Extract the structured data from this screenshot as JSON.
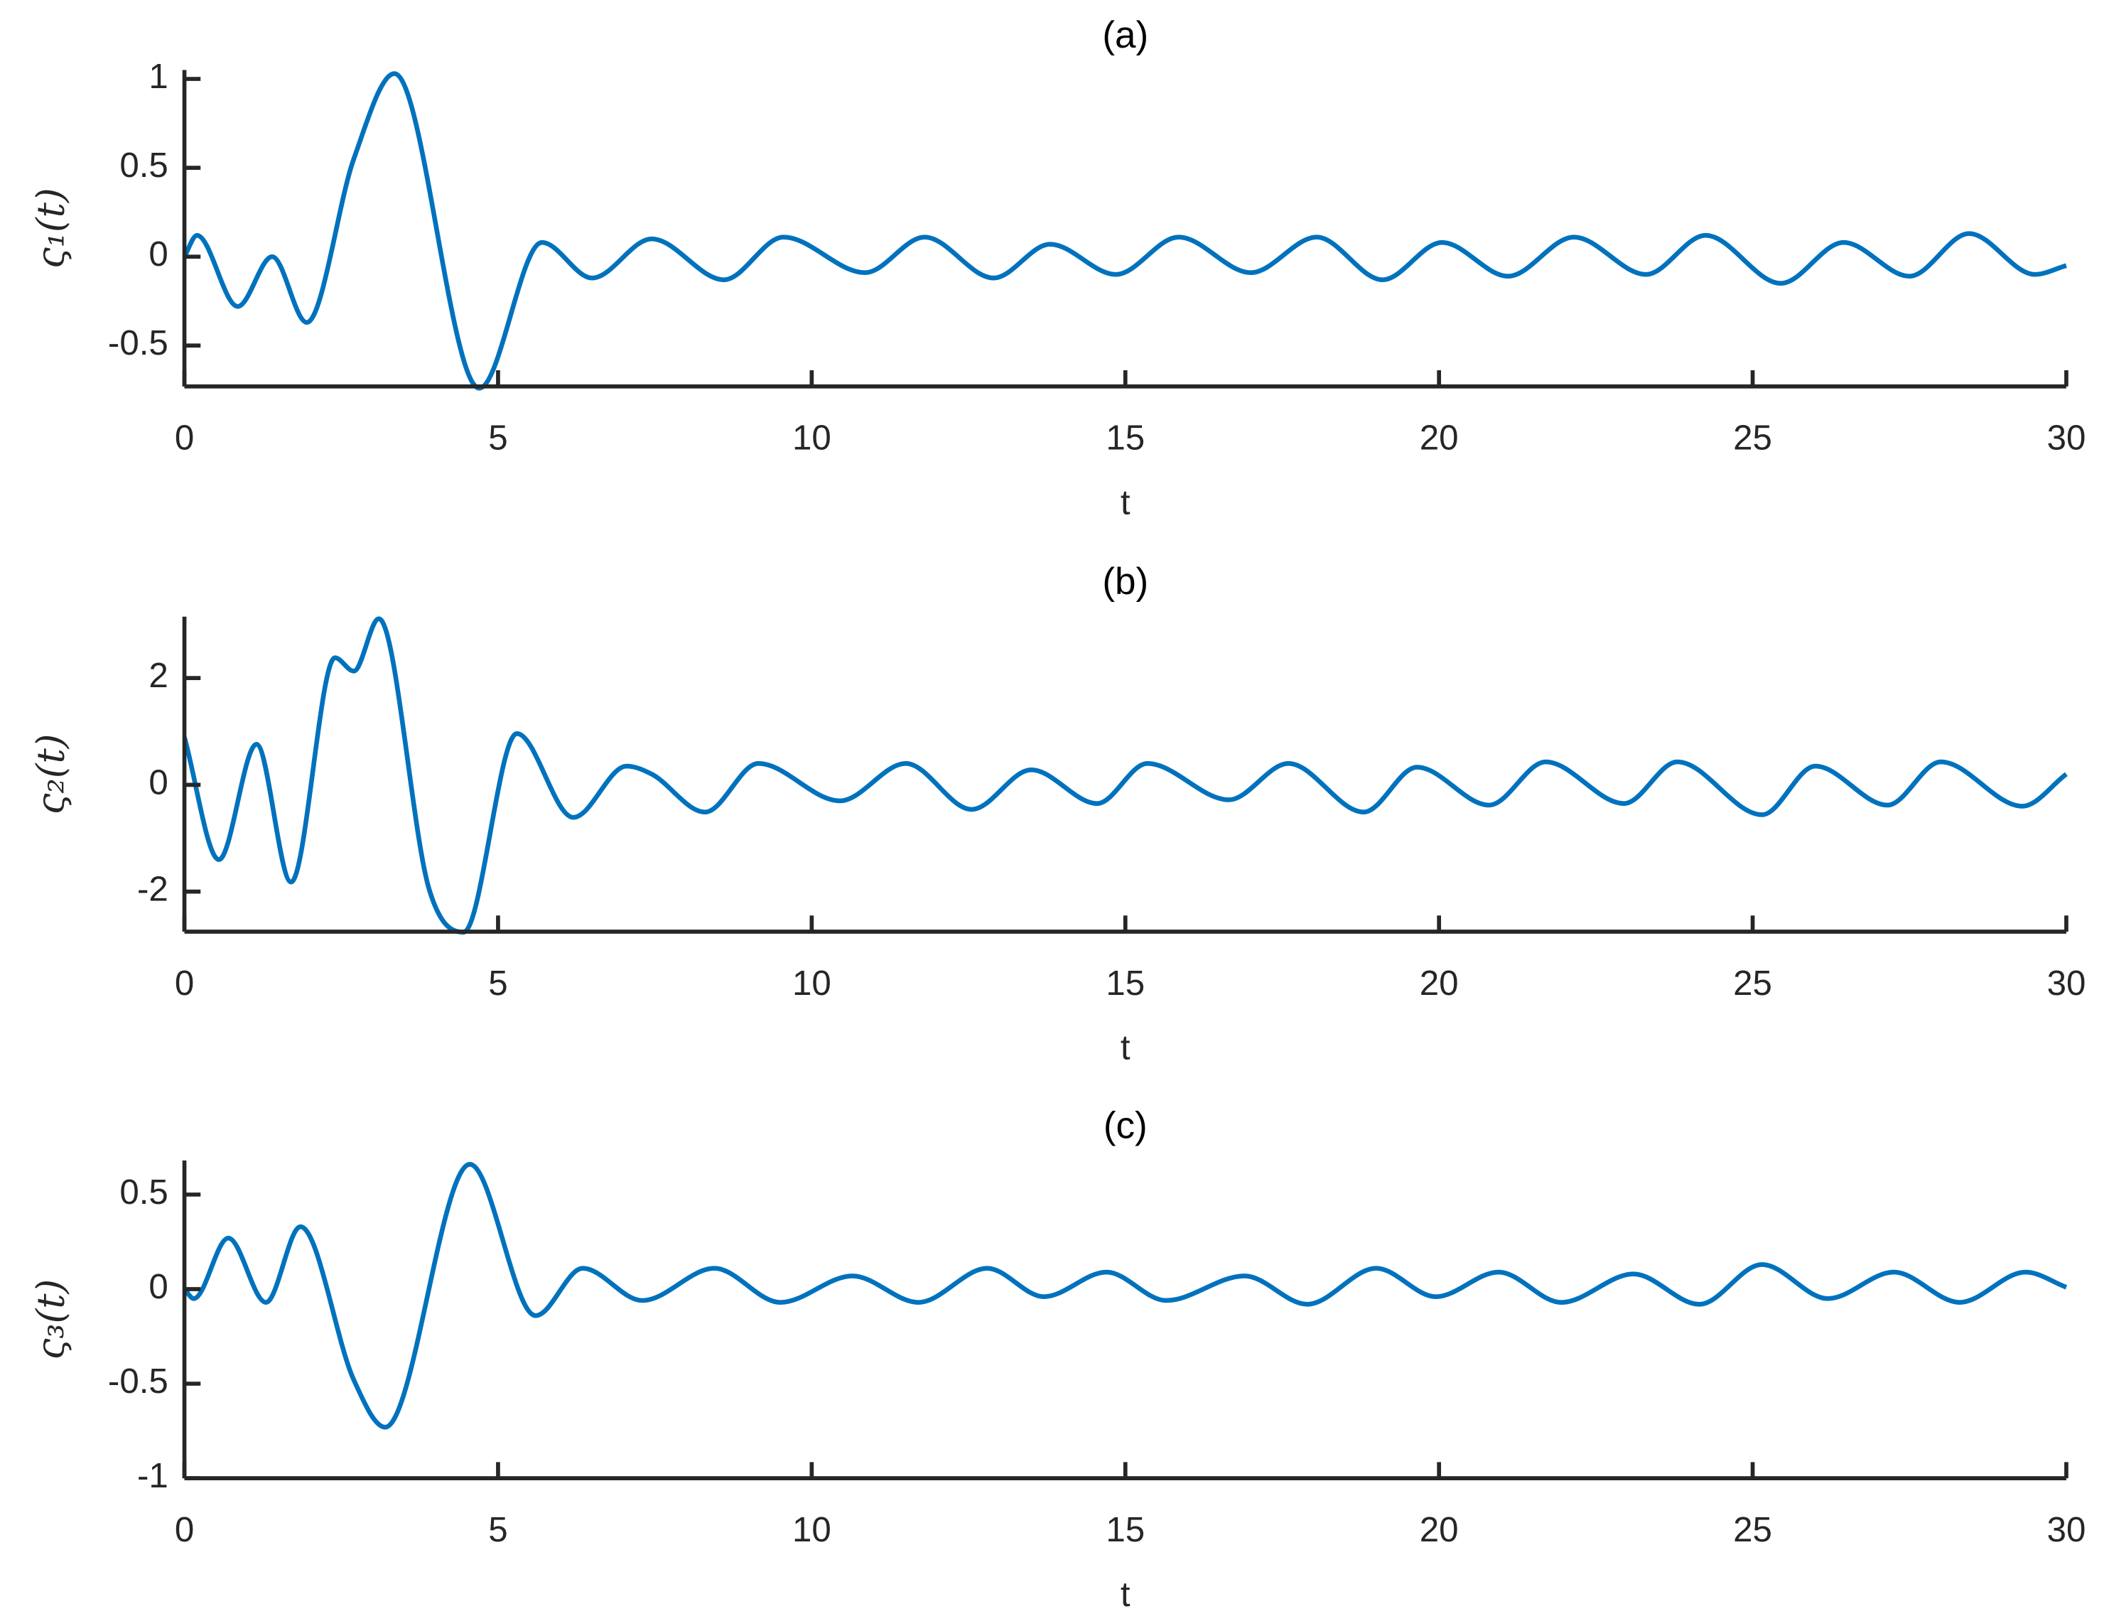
{
  "chart_data": [
    {
      "type": "line",
      "title": "(a)",
      "xlabel": "t",
      "ylabel": "ς₁(t)",
      "color": "#0072bd",
      "x": [
        0,
        0.2,
        0.85,
        1.4,
        1.95,
        2.7,
        3.35,
        4.7,
        5.7,
        6.5,
        7.45,
        8.6,
        9.55,
        10.85,
        11.8,
        12.9,
        13.8,
        14.85,
        15.85,
        17.0,
        18.05,
        19.1,
        20.05,
        21.1,
        22.15,
        23.3,
        24.25,
        25.45,
        26.45,
        27.5,
        28.45,
        29.5,
        30
      ],
      "values": [
        0,
        0.12,
        -0.28,
        0.0,
        -0.37,
        0.55,
        1.03,
        -0.74,
        0.08,
        -0.12,
        0.1,
        -0.13,
        0.11,
        -0.09,
        0.11,
        -0.12,
        0.07,
        -0.1,
        0.11,
        -0.09,
        0.11,
        -0.13,
        0.08,
        -0.11,
        0.11,
        -0.1,
        0.12,
        -0.15,
        0.08,
        -0.11,
        0.13,
        -0.1,
        -0.05
      ],
      "xlim": [
        0,
        30
      ],
      "xticks": [
        0,
        5,
        10,
        15,
        20,
        25,
        30
      ],
      "ylim": [
        -0.73,
        1.05
      ],
      "yticks": [
        -0.5,
        0,
        0.5,
        1
      ]
    },
    {
      "type": "line",
      "title": "(b)",
      "xlabel": "t",
      "ylabel": "ς₂(t)",
      "color": "#0072bd",
      "x": [
        0,
        0.55,
        1.15,
        1.7,
        2.4,
        2.7,
        3.1,
        3.9,
        4.45,
        5.3,
        6.2,
        7.05,
        7.45,
        8.3,
        9.15,
        10.45,
        11.5,
        12.55,
        13.5,
        14.55,
        15.35,
        16.65,
        17.6,
        18.8,
        19.65,
        20.8,
        21.7,
        22.95,
        23.8,
        25.15,
        26.0,
        27.15,
        28.0,
        29.3,
        30
      ],
      "values": [
        0.89,
        -1.4,
        0.76,
        -1.82,
        2.38,
        2.13,
        3.11,
        -1.95,
        -2.76,
        0.96,
        -0.61,
        0.35,
        0.2,
        -0.51,
        0.4,
        -0.3,
        0.4,
        -0.46,
        0.28,
        -0.35,
        0.4,
        -0.28,
        0.4,
        -0.51,
        0.33,
        -0.38,
        0.43,
        -0.35,
        0.43,
        -0.56,
        0.35,
        -0.38,
        0.43,
        -0.4,
        0.2
      ],
      "xlim": [
        0,
        30
      ],
      "xticks": [
        0,
        5,
        10,
        15,
        20,
        25,
        30
      ],
      "ylim": [
        -2.75,
        3.15
      ],
      "yticks": [
        -2,
        0,
        2
      ]
    },
    {
      "type": "line",
      "title": "(c)",
      "xlabel": "t",
      "ylabel": "ς₃(t)",
      "color": "#0072bd",
      "x": [
        0,
        0.15,
        0.7,
        1.3,
        1.85,
        2.7,
        3.2,
        4.55,
        5.6,
        6.35,
        7.3,
        8.45,
        9.5,
        10.65,
        11.7,
        12.8,
        13.7,
        14.7,
        15.65,
        16.9,
        17.9,
        19.0,
        19.95,
        20.95,
        21.95,
        23.1,
        24.15,
        25.15,
        26.2,
        27.25,
        28.3,
        29.35,
        30
      ],
      "values": [
        0,
        -0.05,
        0.27,
        -0.07,
        0.33,
        -0.48,
        -0.73,
        0.66,
        -0.14,
        0.11,
        -0.06,
        0.11,
        -0.07,
        0.07,
        -0.07,
        0.11,
        -0.04,
        0.09,
        -0.06,
        0.07,
        -0.08,
        0.11,
        -0.04,
        0.09,
        -0.07,
        0.08,
        -0.08,
        0.13,
        -0.05,
        0.09,
        -0.07,
        0.09,
        0.01
      ],
      "xlim": [
        0,
        30
      ],
      "xticks": [
        0,
        5,
        10,
        15,
        20,
        25,
        30
      ],
      "ylim": [
        -1,
        0.68
      ],
      "yticks": [
        -1,
        -0.5,
        0,
        0.5
      ]
    }
  ]
}
